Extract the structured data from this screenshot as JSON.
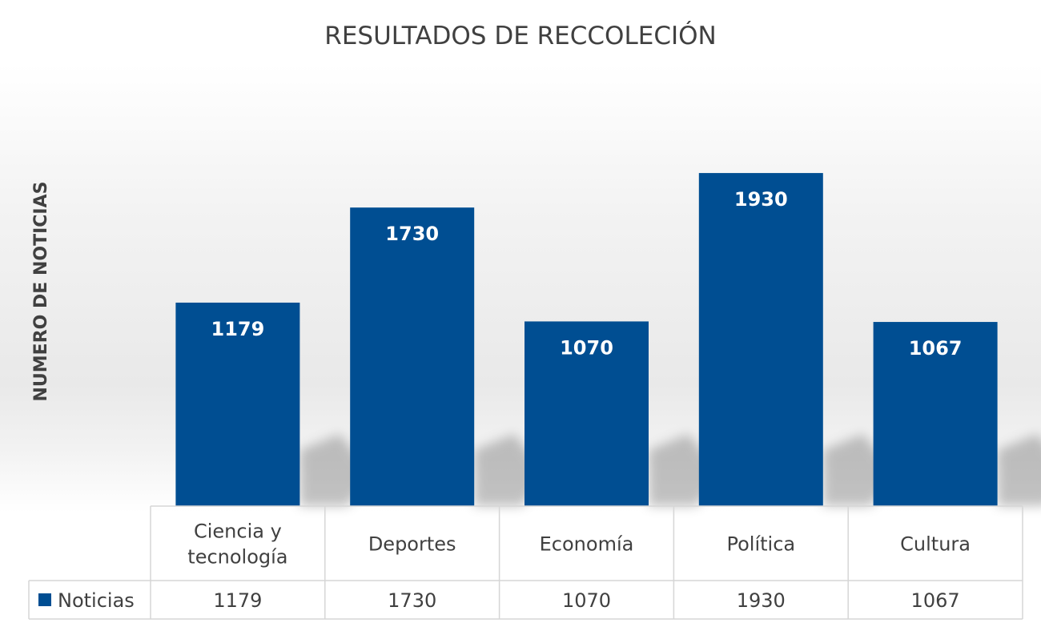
{
  "chart_data": {
    "type": "bar",
    "title": "RESULTADOS DE RECCOLECIÓN",
    "ylabel": "NUMERO DE NOTICIAS",
    "xlabel": "",
    "categories": [
      [
        "Ciencia y",
        "tecnología"
      ],
      [
        "Deportes"
      ],
      [
        "Economía"
      ],
      [
        "Política"
      ],
      [
        "Cultura"
      ]
    ],
    "series": [
      {
        "name": "Noticias",
        "values": [
          1179,
          1730,
          1070,
          1930,
          1067
        ]
      }
    ],
    "ylim": [
      0,
      2000
    ],
    "grid": false,
    "legend": "data-table",
    "data_labels": true,
    "colors": {
      "bar": "#004e92",
      "text": "#404040",
      "table_border": "#d6d6d6"
    }
  }
}
